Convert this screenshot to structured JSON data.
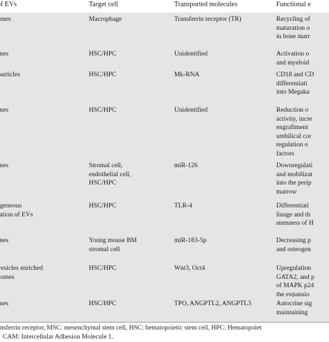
{
  "header": {
    "col1": "of EVs",
    "col2": "Target cell",
    "col3": "Transported molecules",
    "col4": "Functional e"
  },
  "rows": [
    {
      "c1": [
        "somes"
      ],
      "c2": [
        "Macrophage"
      ],
      "c3": [
        "Transferrin receptor (TR)"
      ],
      "c4": [
        "Recycling of",
        "maturation o",
        "in bone marr"
      ]
    },
    {
      "c1": [
        "omes"
      ],
      "c2": [
        "HSC/HPC"
      ],
      "c3": [
        "Unidentified"
      ],
      "c4": [
        "Activation o",
        "and myeloid"
      ]
    },
    {
      "c1": [
        "oparticles"
      ],
      "c2": [
        "HSC/HPC"
      ],
      "c3": [
        "Mk-RNA"
      ],
      "c4": [
        "CD18 and CD",
        "differentiati",
        "into Megaka"
      ]
    },
    {
      "c1": [
        "omes"
      ],
      "c2": [
        "HSC/HPC"
      ],
      "c3": [
        "Unidentified"
      ],
      "c4": [
        "Reduction o",
        "activity, incre",
        "engraftment",
        "umbilical cor",
        "regulation o",
        "factors"
      ]
    },
    {
      "c1": [
        "omes"
      ],
      "c2": [
        "Stromal cell,",
        "endothelial cell,",
        "HSC/HPC"
      ],
      "c3": [
        "miR-126"
      ],
      "c4": [
        "Downregulati",
        "and mobilizat",
        "into the perip",
        "marrow"
      ]
    },
    {
      "c1": [
        "rogeneous",
        "ulation of EVs"
      ],
      "c2": [
        "HSC/HPC"
      ],
      "c3": [
        "TLR-4"
      ],
      "c4": [
        "Differentiati",
        "linage and th",
        "stemness of H"
      ]
    },
    {
      "c1": [
        "omes"
      ],
      "c2": [
        "Young mouse BM",
        "stromal cell"
      ],
      "c3": [
        "miR-183-5p"
      ],
      "c4": [
        "Decreasing p",
        "and osteogen"
      ]
    },
    {
      "c1": [
        "ovesicles enriched",
        "osomes"
      ],
      "c2": [
        "HSC/HPC"
      ],
      "c3": [
        "Wnt3, Oct4"
      ],
      "c4": [
        "Upregulation",
        "GATA2, and p",
        "of MAPK p24",
        "the expansio"
      ]
    },
    {
      "c1": [
        "omes"
      ],
      "c2": [
        "HSC/HPC"
      ],
      "c3": [
        "TPO, ANGPTL2, ANGPTL3"
      ],
      "c4": [
        "Autocrine sig",
        "maintaining"
      ]
    }
  ],
  "footnote": [
    "nsferrin receptor, MSC: mesenchymal stem cell, HSC: hematopoietic stem cell, HPC: Hematopoiet",
    "CAM: Intercellular Adhesion Molecule 1."
  ]
}
